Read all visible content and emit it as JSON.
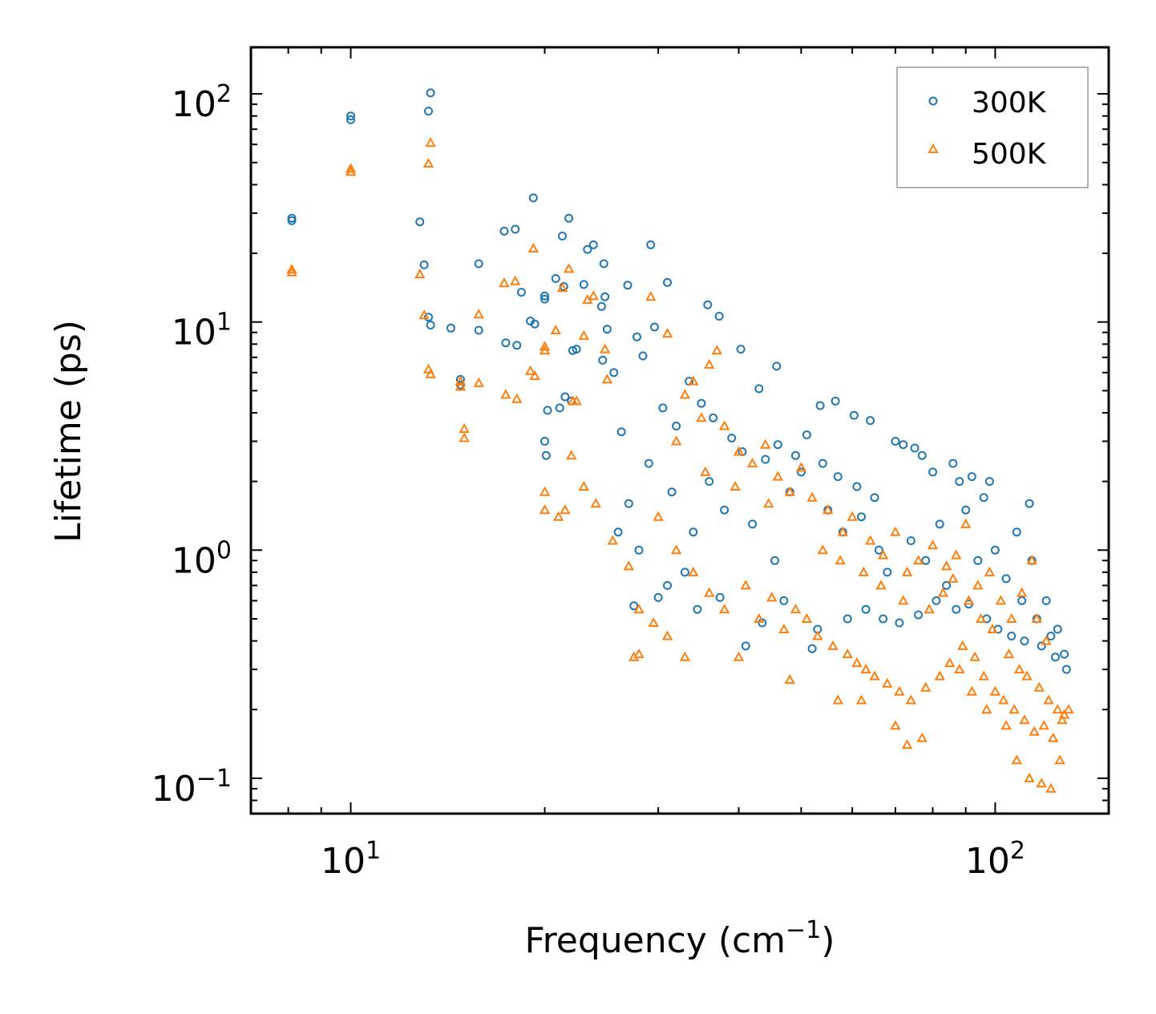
{
  "chart_data": {
    "type": "scatter",
    "xscale": "log",
    "yscale": "log",
    "xlim": [
      7.0,
      150.0
    ],
    "ylim": [
      0.07,
      160.0
    ],
    "xlabel": "Frequency (cm",
    "xlabel_sup": "−1",
    "xlabel_close": ")",
    "ylabel": "Lifetime (ps)",
    "x_ticks": [
      {
        "value": 10,
        "base": "10",
        "exp": "1"
      },
      {
        "value": 100,
        "base": "10",
        "exp": "2"
      }
    ],
    "y_ticks": [
      {
        "value": 0.1,
        "base": "10",
        "exp": "−1"
      },
      {
        "value": 1,
        "base": "10",
        "exp": "0"
      },
      {
        "value": 10,
        "base": "10",
        "exp": "1"
      },
      {
        "value": 100,
        "base": "10",
        "exp": "2"
      }
    ],
    "legend": {
      "position": "top-right"
    },
    "series": [
      {
        "name": "300K",
        "marker": "circle-open",
        "color": "#1f77b4",
        "points": [
          [
            8.1,
            28.5
          ],
          [
            8.1,
            27.8
          ],
          [
            10.0,
            80
          ],
          [
            10.0,
            77
          ],
          [
            13.3,
            101
          ],
          [
            13.2,
            84
          ],
          [
            12.8,
            27.5
          ],
          [
            13.0,
            17.8
          ],
          [
            13.2,
            10.5
          ],
          [
            13.3,
            9.7
          ],
          [
            14.3,
            9.4
          ],
          [
            14.8,
            5.6
          ],
          [
            14.8,
            5.3
          ],
          [
            15.8,
            18
          ],
          [
            15.8,
            9.2
          ],
          [
            17.3,
            25
          ],
          [
            18.0,
            25.5
          ],
          [
            18.4,
            13.5
          ],
          [
            17.4,
            8.1
          ],
          [
            18.1,
            7.9
          ],
          [
            19.2,
            35
          ],
          [
            19.0,
            10.1
          ],
          [
            19.3,
            9.8
          ],
          [
            20.0,
            13
          ],
          [
            20.0,
            12.6
          ],
          [
            20.8,
            15.5
          ],
          [
            21.3,
            23.8
          ],
          [
            21.4,
            14.3
          ],
          [
            21.8,
            28.5
          ],
          [
            22.1,
            7.5
          ],
          [
            22.4,
            7.6
          ],
          [
            23.0,
            14.6
          ],
          [
            23.3,
            20.8
          ],
          [
            23.8,
            21.8
          ],
          [
            24.7,
            18
          ],
          [
            24.8,
            12.9
          ],
          [
            24.5,
            11.7
          ],
          [
            25.0,
            9.3
          ],
          [
            26.9,
            14.5
          ],
          [
            29.2,
            21.8
          ],
          [
            29.6,
            9.5
          ],
          [
            31.0,
            14.9
          ],
          [
            20.2,
            4.1
          ],
          [
            20.0,
            3.0
          ],
          [
            20.1,
            2.6
          ],
          [
            21.1,
            4.2
          ],
          [
            21.5,
            4.7
          ],
          [
            22.0,
            4.5
          ],
          [
            25.6,
            6.0
          ],
          [
            24.6,
            6.8
          ],
          [
            26.3,
            3.3
          ],
          [
            27.8,
            8.6
          ],
          [
            28.4,
            7.1
          ],
          [
            35.8,
            11.9
          ],
          [
            37.3,
            10.6
          ],
          [
            40.3,
            7.6
          ],
          [
            43.0,
            5.1
          ],
          [
            45.8,
            6.4
          ],
          [
            53.5,
            4.3
          ],
          [
            56.5,
            4.5
          ],
          [
            60.4,
            3.9
          ],
          [
            64.0,
            3.7
          ],
          [
            70.0,
            3.0
          ],
          [
            72.0,
            2.9
          ],
          [
            75.0,
            2.8
          ],
          [
            77.0,
            2.6
          ],
          [
            80.0,
            2.2
          ],
          [
            86.0,
            2.4
          ],
          [
            88.0,
            2.0
          ],
          [
            92.0,
            2.1
          ],
          [
            96.0,
            1.7
          ],
          [
            98.0,
            2.0
          ],
          [
            108.0,
            1.2
          ],
          [
            113.0,
            1.6
          ],
          [
            114.0,
            0.9
          ],
          [
            120.0,
            0.6
          ],
          [
            125.0,
            0.45
          ],
          [
            128.0,
            0.35
          ],
          [
            129.0,
            0.3
          ],
          [
            27.5,
            0.57
          ],
          [
            30.0,
            0.62
          ],
          [
            37.4,
            0.62
          ],
          [
            45.5,
            0.9
          ],
          [
            52.0,
            0.37
          ],
          [
            41.0,
            0.38
          ],
          [
            33.0,
            0.8
          ],
          [
            34.0,
            1.2
          ],
          [
            36.0,
            2.0
          ],
          [
            38.0,
            1.5
          ],
          [
            42.0,
            1.3
          ],
          [
            44.0,
            2.5
          ],
          [
            48.0,
            1.8
          ],
          [
            50.0,
            2.2
          ],
          [
            55.0,
            1.5
          ],
          [
            58.0,
            1.2
          ],
          [
            62.0,
            1.4
          ],
          [
            66.0,
            1.0
          ],
          [
            68.0,
            0.8
          ],
          [
            74.0,
            1.1
          ],
          [
            78.0,
            0.9
          ],
          [
            82.0,
            1.3
          ],
          [
            84.0,
            0.7
          ],
          [
            90.0,
            1.5
          ],
          [
            94.0,
            0.9
          ],
          [
            100.0,
            1.0
          ],
          [
            104.0,
            0.75
          ],
          [
            110.0,
            0.6
          ],
          [
            116.0,
            0.5
          ],
          [
            122.0,
            0.42
          ],
          [
            30.5,
            4.2
          ],
          [
            32.0,
            3.5
          ],
          [
            33.5,
            5.5
          ],
          [
            35.0,
            4.4
          ],
          [
            36.5,
            3.8
          ],
          [
            39.0,
            3.1
          ],
          [
            40.5,
            2.7
          ],
          [
            46.0,
            2.9
          ],
          [
            49.0,
            2.6
          ],
          [
            51.0,
            3.2
          ],
          [
            54.0,
            2.4
          ],
          [
            57.0,
            2.1
          ],
          [
            61.0,
            1.9
          ],
          [
            65.0,
            1.7
          ],
          [
            31.5,
            1.8
          ],
          [
            29.0,
            2.4
          ],
          [
            27.0,
            1.6
          ],
          [
            26.0,
            1.2
          ],
          [
            28.0,
            1.0
          ],
          [
            31.0,
            0.7
          ],
          [
            34.5,
            0.55
          ],
          [
            43.5,
            0.48
          ],
          [
            47.0,
            0.6
          ],
          [
            53.0,
            0.45
          ],
          [
            59.0,
            0.5
          ],
          [
            63.0,
            0.55
          ],
          [
            67.0,
            0.5
          ],
          [
            71.0,
            0.48
          ],
          [
            76.0,
            0.52
          ],
          [
            81.0,
            0.6
          ],
          [
            87.0,
            0.55
          ],
          [
            91.0,
            0.58
          ],
          [
            97.0,
            0.5
          ],
          [
            101.0,
            0.45
          ],
          [
            106.0,
            0.42
          ],
          [
            111.0,
            0.4
          ],
          [
            118.0,
            0.38
          ],
          [
            124.0,
            0.34
          ]
        ]
      },
      {
        "name": "500K",
        "marker": "triangle-open",
        "color": "#ff7f0e",
        "points": [
          [
            8.1,
            17
          ],
          [
            8.1,
            16.5
          ],
          [
            10.0,
            47
          ],
          [
            10.0,
            45.5
          ],
          [
            13.3,
            61
          ],
          [
            13.2,
            49.5
          ],
          [
            12.8,
            16.2
          ],
          [
            13.0,
            10.7
          ],
          [
            13.2,
            6.2
          ],
          [
            13.3,
            5.9
          ],
          [
            14.8,
            5.5
          ],
          [
            14.8,
            5.2
          ],
          [
            15.0,
            3.4
          ],
          [
            15.0,
            3.1
          ],
          [
            15.8,
            10.8
          ],
          [
            15.8,
            5.4
          ],
          [
            17.3,
            14.8
          ],
          [
            18.0,
            15.1
          ],
          [
            17.4,
            4.8
          ],
          [
            18.1,
            4.6
          ],
          [
            19.2,
            21
          ],
          [
            19.0,
            6.1
          ],
          [
            19.3,
            5.8
          ],
          [
            20.0,
            7.8
          ],
          [
            20.0,
            7.5
          ],
          [
            20.8,
            9.2
          ],
          [
            21.3,
            14.1
          ],
          [
            21.8,
            17.1
          ],
          [
            22.1,
            4.5
          ],
          [
            22.4,
            4.5
          ],
          [
            23.0,
            8.7
          ],
          [
            23.3,
            12.5
          ],
          [
            23.8,
            13
          ],
          [
            24.8,
            7.6
          ],
          [
            25.0,
            5.6
          ],
          [
            29.2,
            12.9
          ],
          [
            31.0,
            8.9
          ],
          [
            20.0,
            1.8
          ],
          [
            20.0,
            1.5
          ],
          [
            21.0,
            1.4
          ],
          [
            21.5,
            1.5
          ],
          [
            22.0,
            2.6
          ],
          [
            23.0,
            1.9
          ],
          [
            24.0,
            1.6
          ],
          [
            25.5,
            1.1
          ],
          [
            27.0,
            0.85
          ],
          [
            28.0,
            0.55
          ],
          [
            29.5,
            0.48
          ],
          [
            31.0,
            0.42
          ],
          [
            27.5,
            0.34
          ],
          [
            28.0,
            0.35
          ],
          [
            33.0,
            0.34
          ],
          [
            40.0,
            0.34
          ],
          [
            48.0,
            0.27
          ],
          [
            57.0,
            0.22
          ],
          [
            62.0,
            0.22
          ],
          [
            70.0,
            0.17
          ],
          [
            73.0,
            0.14
          ],
          [
            77.0,
            0.15
          ],
          [
            88.0,
            0.3
          ],
          [
            92.0,
            0.24
          ],
          [
            97.0,
            0.2
          ],
          [
            104.0,
            0.17
          ],
          [
            108.0,
            0.12
          ],
          [
            113.0,
            0.1
          ],
          [
            118.0,
            0.095
          ],
          [
            122.0,
            0.09
          ],
          [
            126.0,
            0.12
          ],
          [
            130.0,
            0.2
          ],
          [
            110.0,
            0.65
          ],
          [
            114.0,
            0.9
          ],
          [
            116.0,
            0.5
          ],
          [
            120.0,
            0.4
          ],
          [
            37.0,
            7.5
          ],
          [
            36.0,
            6.5
          ],
          [
            34.0,
            5.5
          ],
          [
            33.0,
            4.8
          ],
          [
            35.0,
            3.8
          ],
          [
            32.0,
            3.0
          ],
          [
            38.0,
            3.5
          ],
          [
            40.0,
            2.7
          ],
          [
            42.0,
            2.4
          ],
          [
            44.0,
            2.9
          ],
          [
            46.0,
            2.1
          ],
          [
            48.0,
            1.8
          ],
          [
            50.0,
            2.3
          ],
          [
            52.0,
            1.7
          ],
          [
            55.0,
            1.5
          ],
          [
            58.0,
            1.2
          ],
          [
            60.0,
            1.4
          ],
          [
            64.0,
            1.1
          ],
          [
            67.0,
            0.95
          ],
          [
            70.0,
            1.2
          ],
          [
            73.0,
            0.8
          ],
          [
            76.0,
            0.9
          ],
          [
            80.0,
            1.05
          ],
          [
            84.0,
            0.85
          ],
          [
            87.0,
            0.95
          ],
          [
            90.0,
            1.3
          ],
          [
            94.0,
            0.7
          ],
          [
            98.0,
            0.8
          ],
          [
            102.0,
            0.6
          ],
          [
            106.0,
            0.5
          ],
          [
            30.0,
            1.4
          ],
          [
            32.0,
            1.0
          ],
          [
            34.0,
            0.8
          ],
          [
            36.0,
            0.65
          ],
          [
            38.0,
            0.55
          ],
          [
            41.0,
            0.7
          ],
          [
            43.0,
            0.5
          ],
          [
            45.0,
            0.62
          ],
          [
            47.0,
            0.45
          ],
          [
            49.0,
            0.55
          ],
          [
            51.0,
            0.5
          ],
          [
            53.0,
            0.42
          ],
          [
            56.0,
            0.38
          ],
          [
            59.0,
            0.35
          ],
          [
            61.0,
            0.32
          ],
          [
            63.0,
            0.3
          ],
          [
            65.0,
            0.28
          ],
          [
            68.0,
            0.26
          ],
          [
            71.0,
            0.24
          ],
          [
            74.0,
            0.22
          ],
          [
            78.0,
            0.25
          ],
          [
            82.0,
            0.28
          ],
          [
            85.0,
            0.32
          ],
          [
            89.0,
            0.38
          ],
          [
            93.0,
            0.34
          ],
          [
            96.0,
            0.28
          ],
          [
            100.0,
            0.24
          ],
          [
            103.0,
            0.22
          ],
          [
            107.0,
            0.2
          ],
          [
            111.0,
            0.18
          ],
          [
            115.0,
            0.16
          ],
          [
            119.0,
            0.17
          ],
          [
            123.0,
            0.15
          ],
          [
            127.0,
            0.18
          ],
          [
            35.5,
            2.2
          ],
          [
            39.5,
            1.9
          ],
          [
            44.5,
            1.6
          ],
          [
            54.0,
            1.0
          ],
          [
            57.5,
            0.9
          ],
          [
            62.5,
            0.8
          ],
          [
            66.5,
            0.7
          ],
          [
            72.0,
            0.6
          ],
          [
            79.0,
            0.55
          ],
          [
            83.0,
            0.65
          ],
          [
            86.0,
            0.75
          ],
          [
            91.0,
            0.6
          ],
          [
            95.0,
            0.5
          ],
          [
            99.0,
            0.45
          ],
          [
            105.0,
            0.35
          ],
          [
            109.0,
            0.3
          ],
          [
            112.0,
            0.28
          ],
          [
            117.0,
            0.25
          ],
          [
            121.0,
            0.22
          ],
          [
            125.0,
            0.2
          ],
          [
            128.0,
            0.19
          ]
        ]
      }
    ]
  }
}
